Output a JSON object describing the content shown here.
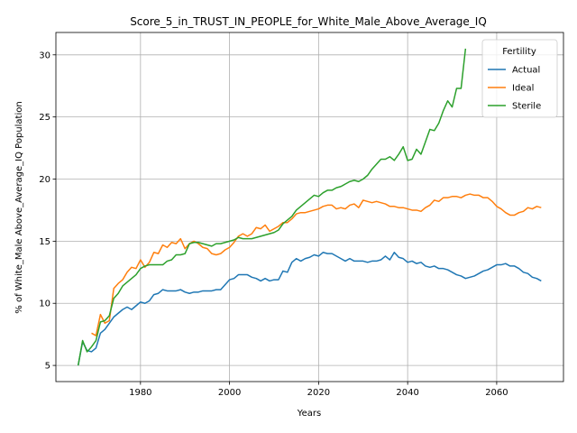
{
  "chart_data": {
    "type": "line",
    "title": "Score_5_in_TRUST_IN_PEOPLE_for_White_Male_Above_Average_IQ",
    "xlabel": "Years",
    "ylabel": "% of White_Male Above_Average_IQ Population",
    "xlim": [
      1961,
      2075
    ],
    "ylim": [
      3.7,
      31.8
    ],
    "xticks": [
      1980,
      2000,
      2020,
      2040,
      2060
    ],
    "yticks": [
      5,
      10,
      15,
      20,
      25,
      30
    ],
    "grid": true,
    "legend": {
      "title": "Fertility",
      "placement": "top-right"
    },
    "series": [
      {
        "name": "Actual",
        "color": "#1f77b4",
        "x": [
          1966,
          1967,
          1968,
          1969,
          1970,
          1971,
          1972,
          1973,
          1974,
          1975,
          1976,
          1977,
          1978,
          1979,
          1980,
          1981,
          1982,
          1983,
          1984,
          1985,
          1986,
          1987,
          1988,
          1989,
          1990,
          1991,
          1992,
          1993,
          1994,
          1995,
          1996,
          1997,
          1998,
          1999,
          2000,
          2001,
          2002,
          2003,
          2004,
          2005,
          2006,
          2007,
          2008,
          2009,
          2010,
          2011,
          2012,
          2013,
          2014,
          2015,
          2016,
          2017,
          2018,
          2019,
          2020,
          2021,
          2022,
          2023,
          2024,
          2025,
          2026,
          2027,
          2028,
          2029,
          2030,
          2031,
          2032,
          2033,
          2034,
          2035,
          2036,
          2037,
          2038,
          2039,
          2040,
          2041,
          2042,
          2043,
          2044,
          2045,
          2046,
          2047,
          2048,
          2049,
          2050,
          2051,
          2052,
          2053,
          2054,
          2055,
          2056,
          2057,
          2058,
          2059,
          2060,
          2061,
          2062,
          2063,
          2064,
          2065,
          2066,
          2067,
          2068,
          2069,
          2070
        ],
        "values": [
          5.0,
          6.9,
          6.2,
          6.1,
          6.4,
          7.6,
          7.9,
          8.4,
          8.9,
          9.2,
          9.5,
          9.7,
          9.5,
          9.8,
          10.1,
          10.0,
          10.2,
          10.7,
          10.8,
          11.1,
          11.0,
          11.0,
          11.0,
          11.1,
          10.9,
          10.8,
          10.9,
          10.9,
          11.0,
          11.0,
          11.0,
          11.1,
          11.1,
          11.5,
          11.9,
          12.0,
          12.3,
          12.3,
          12.3,
          12.1,
          12.0,
          11.8,
          12.0,
          11.8,
          11.9,
          11.9,
          12.6,
          12.5,
          13.3,
          13.6,
          13.4,
          13.6,
          13.7,
          13.9,
          13.8,
          14.1,
          14.0,
          14.0,
          13.8,
          13.6,
          13.4,
          13.6,
          13.4,
          13.4,
          13.4,
          13.3,
          13.4,
          13.4,
          13.5,
          13.8,
          13.5,
          14.1,
          13.7,
          13.6,
          13.3,
          13.4,
          13.2,
          13.3,
          13.0,
          12.9,
          13.0,
          12.8,
          12.8,
          12.7,
          12.5,
          12.3,
          12.2,
          12.0,
          12.1,
          12.2,
          12.4,
          12.6,
          12.7,
          12.9,
          13.1,
          13.1,
          13.2,
          13.0,
          13.0,
          12.8,
          12.5,
          12.4,
          12.1,
          12.0,
          11.8
        ]
      },
      {
        "name": "Ideal",
        "color": "#ff7f0e",
        "x": [
          1969,
          1970,
          1971,
          1972,
          1973,
          1974,
          1975,
          1976,
          1977,
          1978,
          1979,
          1980,
          1981,
          1982,
          1983,
          1984,
          1985,
          1986,
          1987,
          1988,
          1989,
          1990,
          1991,
          1992,
          1993,
          1994,
          1995,
          1996,
          1997,
          1998,
          1999,
          2000,
          2001,
          2002,
          2003,
          2004,
          2005,
          2006,
          2007,
          2008,
          2009,
          2010,
          2011,
          2012,
          2013,
          2014,
          2015,
          2016,
          2017,
          2018,
          2019,
          2020,
          2021,
          2022,
          2023,
          2024,
          2025,
          2026,
          2027,
          2028,
          2029,
          2030,
          2031,
          2032,
          2033,
          2034,
          2035,
          2036,
          2037,
          2038,
          2039,
          2040,
          2041,
          2042,
          2043,
          2044,
          2045,
          2046,
          2047,
          2048,
          2049,
          2050,
          2051,
          2052,
          2053,
          2054,
          2055,
          2056,
          2057,
          2058,
          2059,
          2060,
          2061,
          2062,
          2063,
          2064,
          2065,
          2066,
          2067,
          2068,
          2069,
          2070
        ],
        "values": [
          7.6,
          7.4,
          9.1,
          8.4,
          8.6,
          11.2,
          11.6,
          11.9,
          12.5,
          12.9,
          12.8,
          13.5,
          12.9,
          13.3,
          14.1,
          14.0,
          14.7,
          14.5,
          14.9,
          14.8,
          15.2,
          14.4,
          14.8,
          15.0,
          14.8,
          14.5,
          14.4,
          14.0,
          13.9,
          14.0,
          14.3,
          14.5,
          14.9,
          15.4,
          15.6,
          15.4,
          15.6,
          16.1,
          16.0,
          16.3,
          15.8,
          16.0,
          16.2,
          16.5,
          16.5,
          16.8,
          17.2,
          17.3,
          17.3,
          17.4,
          17.5,
          17.6,
          17.8,
          17.9,
          17.9,
          17.6,
          17.7,
          17.6,
          17.9,
          18.0,
          17.7,
          18.3,
          18.2,
          18.1,
          18.2,
          18.1,
          18.0,
          17.8,
          17.8,
          17.7,
          17.7,
          17.6,
          17.5,
          17.5,
          17.4,
          17.7,
          17.9,
          18.3,
          18.2,
          18.5,
          18.5,
          18.6,
          18.6,
          18.5,
          18.7,
          18.8,
          18.7,
          18.7,
          18.5,
          18.5,
          18.2,
          17.8,
          17.6,
          17.3,
          17.1,
          17.1,
          17.3,
          17.4,
          17.7,
          17.6,
          17.8,
          17.7
        ]
      },
      {
        "name": "Sterile",
        "color": "#2ca02c",
        "x": [
          1966,
          1967,
          1968,
          1969,
          1970,
          1971,
          1972,
          1973,
          1974,
          1975,
          1976,
          1977,
          1978,
          1979,
          1980,
          1981,
          1982,
          1983,
          1984,
          1985,
          1986,
          1987,
          1988,
          1989,
          1990,
          1991,
          1992,
          1993,
          1994,
          1995,
          1996,
          1997,
          1998,
          1999,
          2000,
          2001,
          2002,
          2003,
          2004,
          2005,
          2006,
          2007,
          2008,
          2009,
          2010,
          2011,
          2012,
          2013,
          2014,
          2015,
          2016,
          2017,
          2018,
          2019,
          2020,
          2021,
          2022,
          2023,
          2024,
          2025,
          2026,
          2027,
          2028,
          2029,
          2030,
          2031,
          2032,
          2033,
          2034,
          2035,
          2036,
          2037,
          2038,
          2039,
          2040,
          2041,
          2042,
          2043,
          2044,
          2045,
          2046,
          2047,
          2048,
          2049,
          2050,
          2051,
          2052,
          2053
        ],
        "values": [
          5.0,
          7.0,
          6.1,
          6.5,
          7.0,
          8.5,
          8.6,
          9.0,
          10.4,
          10.8,
          11.4,
          11.7,
          12.0,
          12.3,
          12.8,
          13.0,
          13.1,
          13.1,
          13.1,
          13.1,
          13.4,
          13.5,
          13.9,
          13.9,
          14.0,
          14.8,
          14.9,
          14.9,
          14.8,
          14.7,
          14.6,
          14.8,
          14.8,
          14.9,
          15.0,
          15.1,
          15.3,
          15.2,
          15.2,
          15.2,
          15.3,
          15.4,
          15.5,
          15.6,
          15.7,
          15.9,
          16.4,
          16.7,
          17.0,
          17.5,
          17.8,
          18.1,
          18.4,
          18.7,
          18.6,
          18.9,
          19.1,
          19.1,
          19.3,
          19.4,
          19.6,
          19.8,
          19.9,
          19.8,
          20.0,
          20.3,
          20.8,
          21.2,
          21.6,
          21.6,
          21.8,
          21.5,
          22.0,
          22.6,
          21.5,
          21.6,
          22.4,
          22.0,
          23.0,
          24.0,
          23.9,
          24.5,
          25.5,
          26.3,
          25.8,
          27.3,
          27.3,
          30.5
        ]
      }
    ]
  }
}
